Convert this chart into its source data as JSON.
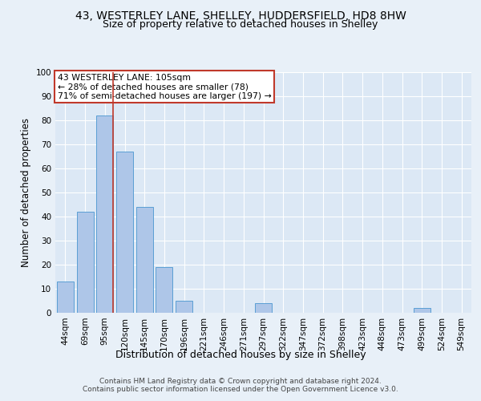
{
  "title": "43, WESTERLEY LANE, SHELLEY, HUDDERSFIELD, HD8 8HW",
  "subtitle": "Size of property relative to detached houses in Shelley",
  "xlabel": "Distribution of detached houses by size in Shelley",
  "ylabel": "Number of detached properties",
  "categories": [
    "44sqm",
    "69sqm",
    "95sqm",
    "120sqm",
    "145sqm",
    "170sqm",
    "196sqm",
    "221sqm",
    "246sqm",
    "271sqm",
    "297sqm",
    "322sqm",
    "347sqm",
    "372sqm",
    "398sqm",
    "423sqm",
    "448sqm",
    "473sqm",
    "499sqm",
    "524sqm",
    "549sqm"
  ],
  "values": [
    13,
    42,
    82,
    67,
    44,
    19,
    5,
    0,
    0,
    0,
    4,
    0,
    0,
    0,
    0,
    0,
    0,
    0,
    2,
    0,
    0
  ],
  "bar_color": "#aec6e8",
  "bar_edge_color": "#5a9fd4",
  "highlight_bar_index": 2,
  "highlight_color": "#c0392b",
  "ylim": [
    0,
    100
  ],
  "yticks": [
    0,
    10,
    20,
    30,
    40,
    50,
    60,
    70,
    80,
    90,
    100
  ],
  "annotation_text": "43 WESTERLEY LANE: 105sqm\n← 28% of detached houses are smaller (78)\n71% of semi-detached houses are larger (197) →",
  "annotation_box_color": "white",
  "annotation_border_color": "#c0392b",
  "footer_line1": "Contains HM Land Registry data © Crown copyright and database right 2024.",
  "footer_line2": "Contains public sector information licensed under the Open Government Licence v3.0.",
  "bg_color": "#e8f0f8",
  "plot_bg_color": "#dce8f5",
  "grid_color": "white",
  "title_fontsize": 10,
  "subtitle_fontsize": 9,
  "axis_label_fontsize": 8.5,
  "tick_fontsize": 7.5,
  "footer_fontsize": 6.5,
  "annotation_fontsize": 7.8
}
